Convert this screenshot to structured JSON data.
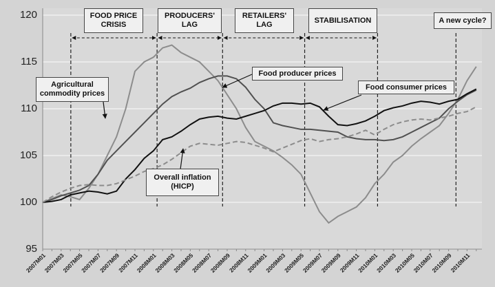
{
  "chart_data": {
    "type": "line",
    "categories": [
      "2007M01",
      null,
      "2007M03",
      null,
      "2007M05",
      null,
      "2007M07",
      null,
      "2007M09",
      null,
      "2007M11",
      null,
      "2008M01",
      null,
      "2008M03",
      null,
      "2008M05",
      null,
      "2008M07",
      null,
      "2008M09",
      null,
      "2008M11",
      null,
      "2009M01",
      null,
      "2009M03",
      null,
      "2009M05",
      null,
      "2009M07",
      null,
      "2009M09",
      null,
      "2009M11",
      null,
      "2010M01",
      null,
      "2010M03",
      null,
      "2010M05",
      null,
      "2010M07",
      null,
      "2010M09",
      null,
      "2010M11",
      null
    ],
    "series": [
      {
        "name": "Agricultural commodity prices",
        "color": "#8c8c8c",
        "dash": false,
        "values": [
          100,
          100.4,
          100.8,
          100.6,
          100.3,
          101.5,
          103,
          105,
          107,
          110,
          114,
          115,
          115.5,
          116.5,
          116.8,
          116,
          115.5,
          115,
          114,
          113,
          111.5,
          110,
          108,
          106.5,
          106,
          105.5,
          104.8,
          104,
          103,
          101,
          99,
          97.8,
          98.5,
          99,
          99.5,
          100.5,
          102,
          103,
          104.3,
          105,
          106,
          106.8,
          107.5,
          108.2,
          109.5,
          111,
          113,
          114.5
        ]
      },
      {
        "name": "Food producer prices",
        "color": "#505050",
        "dash": false,
        "values": [
          100,
          100.3,
          100.7,
          101,
          101.3,
          101.8,
          103,
          104.5,
          105.5,
          106.5,
          107.5,
          108.5,
          109.5,
          110.5,
          111.3,
          111.8,
          112.2,
          112.8,
          113.2,
          113.5,
          113.5,
          113.2,
          112.3,
          111,
          110,
          108.5,
          108.2,
          108,
          107.8,
          107.8,
          107.7,
          107.6,
          107.5,
          107,
          106.8,
          106.7,
          106.7,
          106.6,
          106.7,
          107,
          107.5,
          108,
          108.5,
          109,
          110,
          110.8,
          111.5,
          112
        ]
      },
      {
        "name": "Food consumer prices",
        "color": "#111111",
        "dash": false,
        "values": [
          100,
          100.1,
          100.3,
          100.8,
          101,
          101.2,
          101.1,
          100.9,
          101.2,
          102.5,
          103.5,
          104.7,
          105.5,
          106.7,
          107,
          107.6,
          108.3,
          108.9,
          109.1,
          109.2,
          109,
          108.9,
          109.2,
          109.5,
          109.8,
          110.3,
          110.6,
          110.6,
          110.5,
          110.6,
          110.2,
          109.2,
          108.3,
          108.2,
          108.4,
          108.7,
          109.2,
          109.8,
          110.1,
          110.3,
          110.6,
          110.8,
          110.7,
          110.5,
          110.8,
          111,
          111.6,
          112.1
        ]
      },
      {
        "name": "Overall inflation (HICP)",
        "color": "#8c8c8c",
        "dash": true,
        "values": [
          100,
          100.6,
          101.1,
          101.5,
          101.8,
          101.9,
          101.8,
          101.8,
          102,
          102.4,
          102.8,
          103.3,
          103.6,
          104,
          104.6,
          105.3,
          106,
          106.3,
          106.2,
          106.1,
          106.3,
          106.5,
          106.4,
          106.1,
          105.8,
          105.4,
          105.8,
          106.2,
          106.6,
          106.8,
          106.5,
          106.7,
          106.8,
          107,
          107.3,
          107.7,
          107.2,
          107.8,
          108.3,
          108.6,
          108.8,
          108.9,
          108.8,
          109,
          109.2,
          109.5,
          109.7,
          110.2
        ]
      }
    ],
    "annotations": [
      "FOOD PRICE CRISIS",
      "PRODUCERS' LAG",
      "RETAILERS' LAG",
      "STABILISATION",
      "A new cycle?"
    ],
    "ylim": [
      95,
      120
    ],
    "yticks": [
      95,
      100,
      105,
      110,
      115,
      120
    ],
    "grid": true
  }
}
